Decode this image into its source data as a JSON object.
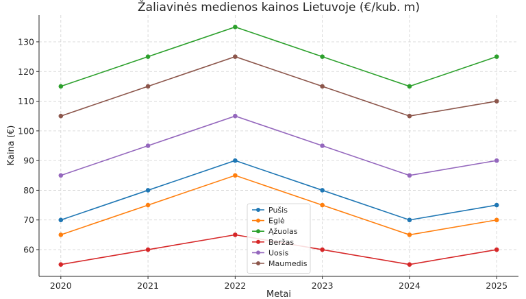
{
  "chart_data": {
    "type": "line",
    "title": "Žaliavinės medienos kainos Lietuvoje (€/kub. m)",
    "xlabel": "Metai",
    "ylabel": "Kaina (€)",
    "x": [
      2020,
      2021,
      2022,
      2023,
      2024,
      2025
    ],
    "xlim": [
      2019.75,
      2025.25
    ],
    "ylim": [
      51,
      139
    ],
    "yticks": [
      60,
      70,
      80,
      90,
      100,
      110,
      120,
      130
    ],
    "grid": true,
    "legend_position": "lower-center",
    "series": [
      {
        "name": "Pušis",
        "color": "#1f77b4",
        "values": [
          70,
          80,
          90,
          80,
          70,
          75
        ]
      },
      {
        "name": "Eglė",
        "color": "#ff7f0e",
        "values": [
          65,
          75,
          85,
          75,
          65,
          70
        ]
      },
      {
        "name": "Ąžuolas",
        "color": "#2ca02c",
        "values": [
          115,
          125,
          135,
          125,
          115,
          125
        ]
      },
      {
        "name": "Beržas",
        "color": "#d62728",
        "values": [
          55,
          60,
          65,
          60,
          55,
          60
        ]
      },
      {
        "name": "Uosis",
        "color": "#9467bd",
        "values": [
          85,
          95,
          105,
          95,
          85,
          90
        ]
      },
      {
        "name": "Maumedis",
        "color": "#8c564b",
        "values": [
          105,
          115,
          125,
          115,
          105,
          110
        ]
      }
    ]
  }
}
